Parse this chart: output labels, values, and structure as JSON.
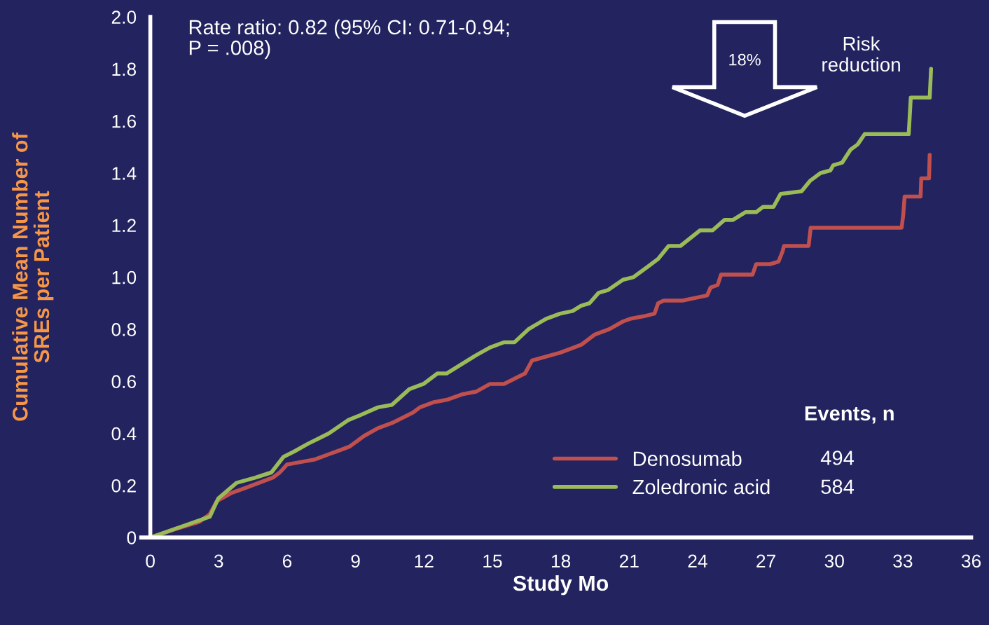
{
  "chart_data": {
    "type": "line",
    "xlabel": "Study Mo",
    "ylabel": "Cumulative Mean Number of\nSREs per Patient",
    "legend_title": "Events, n",
    "legend": "bottom right",
    "grid": false,
    "marker": "none",
    "line_style": "solid",
    "annotations": [
      "Rate ratio: 0.82 (95% CI: 0.71-0.94;\nP = .008)",
      "18%",
      "Risk\nreduction",
      "494",
      "584"
    ],
    "xlim": [
      0,
      36
    ],
    "xticks": [
      0,
      3,
      6,
      9,
      12,
      15,
      18,
      21,
      24,
      27,
      30,
      33,
      36
    ],
    "ylim": [
      0,
      2.0
    ],
    "yticks": [
      0,
      {
        "value": 0.2,
        "label": "0.2"
      },
      {
        "value": 0.4,
        "label": "0.4"
      },
      {
        "value": 0.6,
        "label": "0.6"
      },
      {
        "value": 0.8,
        "label": "0.8"
      },
      {
        "value": 1.0,
        "label": "1.0"
      },
      {
        "value": 1.2,
        "label": "1.2"
      },
      {
        "value": 1.4,
        "label": "1.4"
      },
      {
        "value": 1.6,
        "label": "1.6"
      },
      {
        "value": 1.8,
        "label": "1.8"
      },
      {
        "value": 2.0,
        "label": "2.0"
      }
    ],
    "series": [
      {
        "name": "Denosumab",
        "color": "#c0504d",
        "x": [
          0,
          1.38,
          2.15,
          2.61,
          2.92,
          3.53,
          4.15,
          4.76,
          5.37,
          5.68,
          5.99,
          6.6,
          7.22,
          7.83,
          8.14,
          8.45,
          8.75,
          9.06,
          9.37,
          9.98,
          10.29,
          10.6,
          11.06,
          11.52,
          11.82,
          12.44,
          13.05,
          13.67,
          14.28,
          14.9,
          15.51,
          15.97,
          16.43,
          16.74,
          17.97,
          18.89,
          19.5,
          20.12,
          20.73,
          21.04,
          21.65,
          22.11,
          22.27,
          22.51,
          23.34,
          24.42,
          24.57,
          24.88,
          25.03,
          26.41,
          26.57,
          27.18,
          27.55,
          27.73,
          27.79,
          28.87,
          28.96,
          32.95,
          33.02,
          33.08,
          33.78,
          33.81,
          34.15,
          34.18
        ],
        "values": [
          0,
          0.04,
          0.06,
          0.09,
          0.14,
          0.17,
          0.19,
          0.21,
          0.23,
          0.25,
          0.28,
          0.29,
          0.3,
          0.32,
          0.33,
          0.34,
          0.35,
          0.37,
          0.39,
          0.42,
          0.43,
          0.44,
          0.46,
          0.48,
          0.5,
          0.52,
          0.53,
          0.55,
          0.56,
          0.59,
          0.59,
          0.61,
          0.63,
          0.68,
          0.71,
          0.74,
          0.78,
          0.8,
          0.83,
          0.84,
          0.85,
          0.86,
          0.9,
          0.91,
          0.91,
          0.93,
          0.96,
          0.97,
          1.01,
          1.01,
          1.05,
          1.05,
          1.06,
          1.1,
          1.12,
          1.12,
          1.19,
          1.19,
          1.24,
          1.31,
          1.31,
          1.38,
          1.38,
          1.47
        ]
      },
      {
        "name": "Zoledronic acid",
        "color": "#9bbb59",
        "x": [
          0,
          2.61,
          2.98,
          3.78,
          4.61,
          5.31,
          5.84,
          6.3,
          6.91,
          7.37,
          7.83,
          8.66,
          9.21,
          9.98,
          10.6,
          11.36,
          11.98,
          12.59,
          12.99,
          14.28,
          14.9,
          15.51,
          15.97,
          16.58,
          17.35,
          17.97,
          18.52,
          18.89,
          19.26,
          19.66,
          20.06,
          20.73,
          21.19,
          21.81,
          22.27,
          22.73,
          23.25,
          24.11,
          24.66,
          25.18,
          25.55,
          26.11,
          26.57,
          26.87,
          27.33,
          27.64,
          28.56,
          28.93,
          29.39,
          29.82,
          29.95,
          30.34,
          30.71,
          31.02,
          31.33,
          33.26,
          33.35,
          34.18,
          34.24
        ],
        "values": [
          0,
          0.08,
          0.15,
          0.21,
          0.23,
          0.25,
          0.31,
          0.33,
          0.36,
          0.38,
          0.4,
          0.45,
          0.47,
          0.5,
          0.51,
          0.57,
          0.59,
          0.63,
          0.63,
          0.7,
          0.73,
          0.75,
          0.75,
          0.8,
          0.84,
          0.86,
          0.87,
          0.89,
          0.9,
          0.94,
          0.95,
          0.99,
          1.0,
          1.04,
          1.07,
          1.12,
          1.12,
          1.18,
          1.18,
          1.22,
          1.22,
          1.25,
          1.25,
          1.27,
          1.27,
          1.32,
          1.33,
          1.37,
          1.4,
          1.41,
          1.43,
          1.44,
          1.49,
          1.51,
          1.55,
          1.55,
          1.69,
          1.69,
          1.8
        ]
      }
    ]
  }
}
